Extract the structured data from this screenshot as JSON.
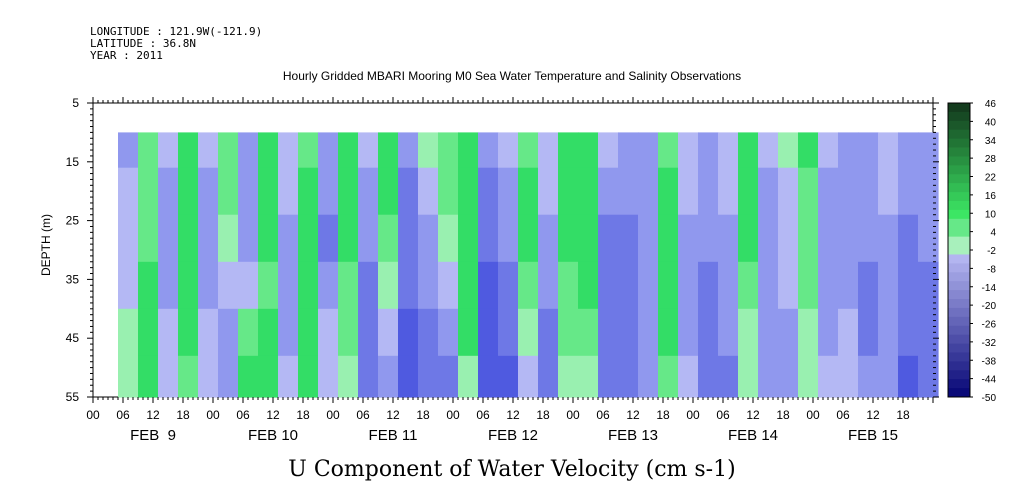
{
  "header": {
    "longitude": "LONGITUDE : 121.9W(-121.9)",
    "latitude": "LATITUDE : 36.8N",
    "year": "YEAR : 2011"
  },
  "chart_data": {
    "type": "heatmap",
    "title": "Hourly Gridded MBARI Mooring M0 Sea Water Temperature and Salinity Observations",
    "xlabel_bottom": "U Component of Water Velocity (cm s-1)",
    "ylabel": "DEPTH (m)",
    "ylim": [
      55,
      5
    ],
    "y_ticks": [
      "5",
      "15",
      "25",
      "35",
      "45",
      "55"
    ],
    "x_hour_ticks": [
      "00",
      "06",
      "12",
      "18",
      "00",
      "06",
      "12",
      "18",
      "00",
      "06",
      "12",
      "18",
      "00",
      "06",
      "12",
      "18",
      "00",
      "06",
      "12",
      "18",
      "00",
      "06",
      "12",
      "18",
      "00",
      "06",
      "12",
      "18"
    ],
    "x_day_labels": [
      "FEB  9",
      "FEB 10",
      "FEB 11",
      "FEB 12",
      "FEB 13",
      "FEB 14",
      "FEB 15"
    ],
    "x_range_hours": [
      0,
      168
    ],
    "data_start_hour": 5,
    "data_top_depth": 10,
    "colorbar": {
      "labels": [
        "46",
        "40",
        "34",
        "28",
        "22",
        "16",
        "10",
        "4",
        "-2",
        "-8",
        "-14",
        "-20",
        "-26",
        "-32",
        "-38",
        "-44",
        "-50"
      ],
      "min": -50,
      "max": 46,
      "step": 3
    },
    "u_velocity_profile": {
      "times_hour": [
        5,
        9,
        13,
        17,
        21,
        25,
        29,
        33,
        37,
        41,
        45,
        49,
        53,
        57,
        61,
        65,
        69,
        73,
        77,
        81,
        85,
        89,
        93,
        97,
        101,
        105,
        109,
        113,
        117,
        121,
        125,
        129,
        133,
        137,
        141,
        145,
        149,
        153,
        157,
        161,
        165
      ],
      "values_cm_s_shallow_to_deep": [
        [
          -10,
          -8,
          -6,
          -4,
          -2,
          0
        ],
        [
          4,
          6,
          8,
          10,
          12,
          10
        ],
        [
          -8,
          -12,
          -14,
          -10,
          -6,
          -4
        ],
        [
          12,
          16,
          18,
          14,
          10,
          8
        ],
        [
          -6,
          -10,
          -14,
          -12,
          -8,
          -6
        ],
        [
          6,
          4,
          2,
          -4,
          -10,
          -14
        ],
        [
          -12,
          -14,
          -10,
          -4,
          6,
          10
        ],
        [
          14,
          12,
          10,
          8,
          12,
          16
        ],
        [
          -4,
          -8,
          -12,
          -14,
          -10,
          -6
        ],
        [
          8,
          10,
          14,
          16,
          12,
          10
        ],
        [
          -10,
          -14,
          -16,
          -12,
          -8,
          -6
        ],
        [
          10,
          14,
          12,
          8,
          4,
          2
        ],
        [
          -6,
          -10,
          -14,
          -16,
          -18,
          -20
        ],
        [
          12,
          10,
          6,
          0,
          -6,
          -10
        ],
        [
          -14,
          -16,
          -18,
          -20,
          -22,
          -24
        ],
        [
          2,
          -4,
          -10,
          -14,
          -16,
          -18
        ],
        [
          6,
          4,
          -2,
          -8,
          -14,
          -18
        ],
        [
          18,
          22,
          26,
          20,
          10,
          0
        ],
        [
          -14,
          -18,
          -20,
          -22,
          -24,
          -26
        ],
        [
          -6,
          -10,
          -14,
          -16,
          -20,
          -22
        ],
        [
          8,
          10,
          12,
          6,
          -2,
          -8
        ],
        [
          -4,
          -8,
          -12,
          -14,
          -16,
          -18
        ],
        [
          16,
          14,
          10,
          6,
          4,
          2
        ],
        [
          10,
          14,
          16,
          12,
          6,
          2
        ],
        [
          -8,
          -12,
          -16,
          -18,
          -20,
          -20
        ],
        [
          -12,
          -14,
          -16,
          -18,
          -18,
          -16
        ],
        [
          -10,
          -12,
          -14,
          -14,
          -12,
          -10
        ],
        [
          8,
          12,
          16,
          14,
          10,
          6
        ],
        [
          -4,
          -6,
          -10,
          -12,
          -10,
          -8
        ],
        [
          -10,
          -12,
          -14,
          -16,
          -18,
          -20
        ],
        [
          -6,
          -8,
          -10,
          -12,
          -14,
          -16
        ],
        [
          12,
          14,
          10,
          6,
          2,
          -2
        ],
        [
          -8,
          -10,
          -12,
          -14,
          -14,
          -12
        ],
        [
          -2,
          -4,
          -6,
          -8,
          -10,
          -12
        ],
        [
          10,
          8,
          6,
          4,
          2,
          0
        ],
        [
          -8,
          -10,
          -12,
          -12,
          -10,
          -8
        ],
        [
          -12,
          -14,
          -12,
          -10,
          -8,
          -6
        ],
        [
          -10,
          -12,
          -14,
          -16,
          -16,
          -14
        ],
        [
          -6,
          -8,
          -10,
          -12,
          -14,
          -14
        ],
        [
          -12,
          -14,
          -16,
          -18,
          -20,
          -22
        ],
        [
          -10,
          -12,
          -14,
          -16,
          -18,
          -20
        ]
      ],
      "depths_m": [
        12,
        20,
        28,
        36,
        44,
        52
      ]
    }
  }
}
